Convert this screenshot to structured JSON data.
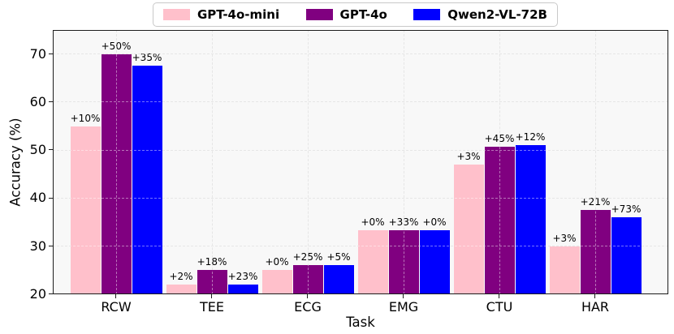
{
  "chart_data": {
    "type": "bar",
    "title": "",
    "xlabel": "Task",
    "ylabel": "Accuracy (%)",
    "categories": [
      "RCW",
      "TEE",
      "ECG",
      "EMG",
      "CTU",
      "HAR"
    ],
    "series": [
      {
        "name": "GPT-4o-mini",
        "color": "#ffc0cb",
        "values": [
          55,
          22,
          25,
          33.3,
          47,
          30
        ],
        "annotations": [
          "+10%",
          "+2%",
          "+0%",
          "+0%",
          "+3%",
          "+3%"
        ]
      },
      {
        "name": "GPT-4o",
        "color": "#800080",
        "values": [
          70,
          25,
          26,
          33.3,
          50.7,
          37.5
        ],
        "annotations": [
          "+50%",
          "+18%",
          "+25%",
          "+33%",
          "+45%",
          "+21%"
        ]
      },
      {
        "name": "Qwen2-VL-72B",
        "color": "#0000ff",
        "values": [
          67.5,
          22,
          26,
          33.3,
          51,
          36
        ],
        "annotations": [
          "+35%",
          "+23%",
          "+5%",
          "+0%",
          "+12%",
          "+73%"
        ]
      }
    ],
    "ylim": [
      20,
      75
    ],
    "yticks": [
      20,
      30,
      40,
      50,
      60,
      70
    ],
    "grid": true,
    "grid_style": "dashed",
    "legend_position": "top-center",
    "plot_background": "#f8f8f8"
  }
}
